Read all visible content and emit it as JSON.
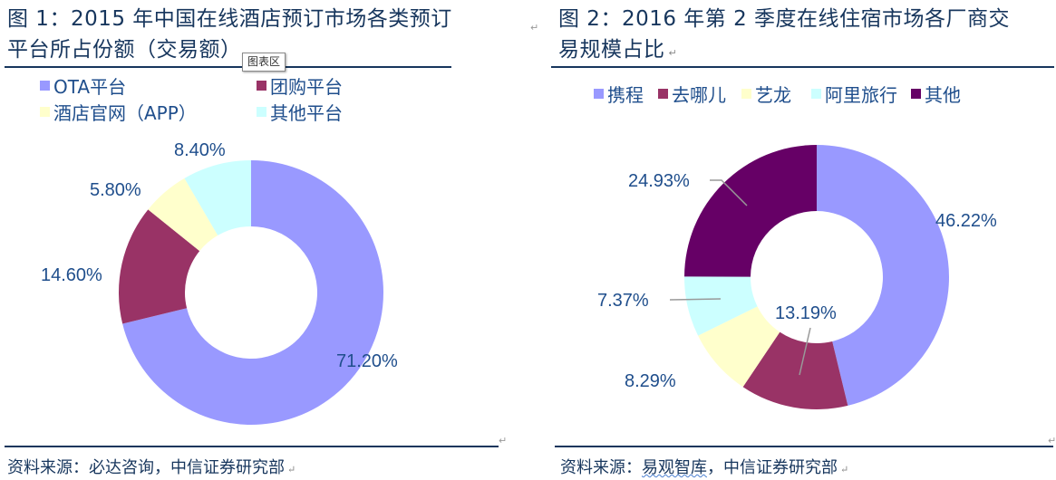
{
  "figure1": {
    "title_line1": "图 1：2015 年中国在线酒店预订市场各类预订",
    "title_line2": "平台所占份额（交易额）",
    "tooltip": "图表区",
    "legend": [
      {
        "label": "OTA平台",
        "color": "#9999ff"
      },
      {
        "label": "团购平台",
        "color": "#993366"
      },
      {
        "label": "酒店官网（APP）",
        "color": "#ffffcc"
      },
      {
        "label": "其他平台",
        "color": "#ccffff"
      }
    ],
    "source": "资料来源：必达咨询，中信证券研究部"
  },
  "figure2": {
    "title_line1": "图 2：2016 年第 2 季度在线住宿市场各厂商交",
    "title_line2": "易规模占比",
    "legend": [
      {
        "label": "携程",
        "color": "#9999ff"
      },
      {
        "label": "去哪儿",
        "color": "#993366"
      },
      {
        "label": "艺龙",
        "color": "#ffffcc"
      },
      {
        "label": "阿里旅行",
        "color": "#ccffff"
      },
      {
        "label": "其他",
        "color": "#660066"
      }
    ],
    "source_prefix": "资料来源：",
    "source_wavy": "易观智库",
    "source_suffix": "，中信证券研究部"
  },
  "chart_data": [
    {
      "type": "pie",
      "subtype": "donut",
      "title": "图 1：2015 年中国在线酒店预订市场各类预订平台所占份额（交易额）",
      "categories": [
        "OTA平台",
        "团购平台",
        "酒店官网（APP）",
        "其他平台"
      ],
      "values": [
        71.2,
        14.6,
        5.8,
        8.4
      ],
      "labels": [
        "71.20%",
        "14.60%",
        "5.80%",
        "8.40%"
      ],
      "colors": [
        "#9999ff",
        "#993366",
        "#ffffcc",
        "#ccffff"
      ],
      "legend_position": "top",
      "start_angle": 0,
      "direction": "clockwise"
    },
    {
      "type": "pie",
      "subtype": "donut",
      "title": "图 2：2016 年第 2 季度在线住宿市场各厂商交易规模占比",
      "categories": [
        "携程",
        "去哪儿",
        "艺龙",
        "阿里旅行",
        "其他"
      ],
      "values": [
        46.22,
        13.19,
        8.29,
        7.37,
        24.93
      ],
      "labels": [
        "46.22%",
        "13.19%",
        "8.29%",
        "7.37%",
        "24.93%"
      ],
      "colors": [
        "#9999ff",
        "#993366",
        "#ffffcc",
        "#ccffff",
        "#660066"
      ],
      "legend_position": "top",
      "start_angle": 0,
      "direction": "clockwise"
    }
  ]
}
